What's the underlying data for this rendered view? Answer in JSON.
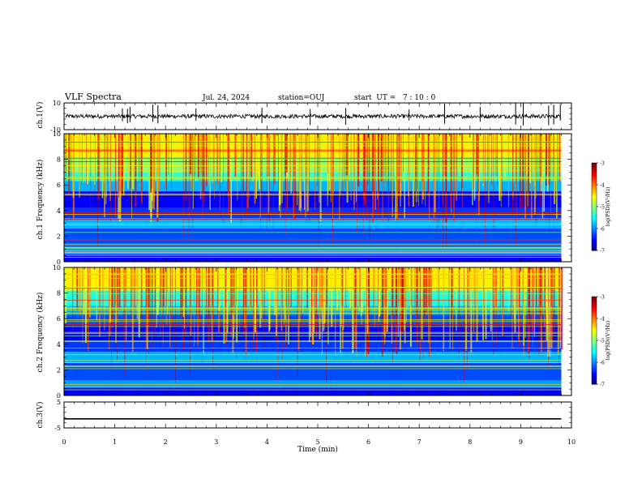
{
  "header": {
    "title": "VLF Spectra",
    "date": "Jul. 24, 2024",
    "station": "station=OUJ",
    "start": "start  UT =   7 : 10 : 0"
  },
  "chart_data": [
    {
      "type": "line",
      "panel": "ch1-waveform",
      "ylabel": "ch.1(V)",
      "ylim": [
        -10,
        10
      ],
      "ytick_labels": [
        "10",
        "-10"
      ],
      "xlim": [
        0,
        10
      ],
      "baseline": 0,
      "spikes_x": [
        1.15,
        1.25,
        1.3,
        1.75,
        1.85,
        2.6,
        3.9,
        4.85,
        5.55,
        6.8,
        7.5,
        8.2,
        8.9,
        9.05,
        9.55,
        9.65,
        9.78
      ],
      "color": "#000000"
    },
    {
      "type": "heatmap",
      "panel": "ch1-spectrogram",
      "ylabel": "ch.1 Frequency (kHz)",
      "ylim": [
        0,
        10
      ],
      "ytick_labels": [
        "0",
        "2",
        "4",
        "6",
        "8",
        "10"
      ],
      "xlim": [
        0,
        10
      ],
      "colorbar": {
        "label": "log(PSD)(V²/Hz)",
        "range": [
          -7,
          -3
        ],
        "tick_labels": [
          "-3",
          "-4",
          "-5",
          "-6",
          "-7"
        ]
      }
    },
    {
      "type": "heatmap",
      "panel": "ch2-spectrogram",
      "ylabel": "ch.2 Frequency (kHz)",
      "ylim": [
        0,
        10
      ],
      "ytick_labels": [
        "0",
        "2",
        "4",
        "6",
        "8",
        "10"
      ],
      "xlim": [
        0,
        10
      ],
      "colorbar": {
        "label": "log(PSD)(V²/Hz)",
        "range": [
          -7,
          -3
        ],
        "tick_labels": [
          "-3",
          "-4",
          "-5",
          "-6",
          "-7"
        ]
      }
    },
    {
      "type": "line",
      "panel": "ch3-waveform",
      "ylabel": "ch.3(V)",
      "ylim": [
        -5,
        5
      ],
      "ytick_labels": [
        "5",
        "-5"
      ],
      "x": [
        0,
        9.8
      ],
      "y": [
        -1.5,
        -1.5
      ],
      "xlim": [
        0,
        10
      ],
      "xlabel": "Time (min)",
      "xtick_labels": [
        "0",
        "1",
        "2",
        "3",
        "4",
        "5",
        "6",
        "7",
        "8",
        "9",
        "10"
      ]
    }
  ]
}
